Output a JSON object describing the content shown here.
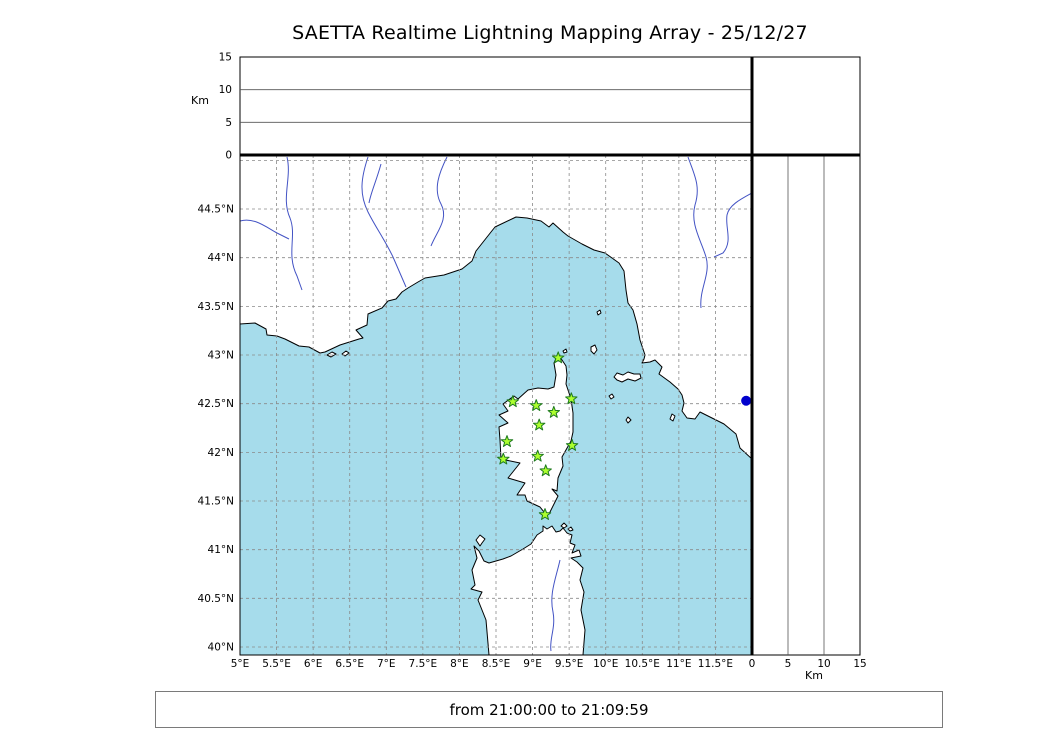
{
  "title": "SAETTA Realtime Lightning Mapping Array - 25/12/27",
  "status_bar": {
    "text": "from 21:00:00 to 21:09:59"
  },
  "colors": {
    "sea": "#a6dceb",
    "land": "#ffffff",
    "coastline": "#000000",
    "river": "#4353c4",
    "grid": "#8a8a8a",
    "panel_grid": "#555555",
    "axis": "#000000",
    "station_fill": "#adff2f",
    "station_edge": "#1e7a1e",
    "event_dot": "#0000cd"
  },
  "map": {
    "lon_range": [
      5.0,
      12.0
    ],
    "lat_range": [
      39.92,
      45.06
    ],
    "grid_step_deg": 0.5,
    "lon_ticks": [
      {
        "value": 5,
        "label": "5°E"
      },
      {
        "value": 5.5,
        "label": "5.5°E"
      },
      {
        "value": 6,
        "label": "6°E"
      },
      {
        "value": 6.5,
        "label": "6.5°E"
      },
      {
        "value": 7,
        "label": "7°E"
      },
      {
        "value": 7.5,
        "label": "7.5°E"
      },
      {
        "value": 8,
        "label": "8°E"
      },
      {
        "value": 8.5,
        "label": "8.5°E"
      },
      {
        "value": 9,
        "label": "9°E"
      },
      {
        "value": 9.5,
        "label": "9.5°E"
      },
      {
        "value": 10,
        "label": "10°E"
      },
      {
        "value": 10.5,
        "label": "10.5°E"
      },
      {
        "value": 11,
        "label": "11°E"
      },
      {
        "value": 11.5,
        "label": "11.5°E"
      }
    ],
    "lat_ticks": [
      {
        "value": 40,
        "label": "40°N"
      },
      {
        "value": 40.5,
        "label": "40.5°N"
      },
      {
        "value": 41,
        "label": "41°N"
      },
      {
        "value": 41.5,
        "label": "41.5°N"
      },
      {
        "value": 42,
        "label": "42°N"
      },
      {
        "value": 42.5,
        "label": "42.5°N"
      },
      {
        "value": 43,
        "label": "43°N"
      },
      {
        "value": 43.5,
        "label": "43.5°N"
      },
      {
        "value": 44,
        "label": "44°N"
      },
      {
        "value": 44.5,
        "label": "44.5°N"
      }
    ]
  },
  "altitude_axes": {
    "unit_label": "Km",
    "range_km": [
      0,
      15
    ],
    "ticks": [
      {
        "value": 0,
        "label": "0"
      },
      {
        "value": 5,
        "label": "5"
      },
      {
        "value": 10,
        "label": "10"
      },
      {
        "value": 15,
        "label": "15"
      }
    ]
  },
  "stations": [
    {
      "lon": 9.35,
      "lat": 42.97
    },
    {
      "lon": 8.73,
      "lat": 42.52
    },
    {
      "lon": 9.05,
      "lat": 42.48
    },
    {
      "lon": 9.53,
      "lat": 42.55
    },
    {
      "lon": 9.29,
      "lat": 42.41
    },
    {
      "lon": 9.09,
      "lat": 42.28
    },
    {
      "lon": 8.65,
      "lat": 42.11
    },
    {
      "lon": 9.54,
      "lat": 42.07
    },
    {
      "lon": 8.6,
      "lat": 41.93
    },
    {
      "lon": 9.07,
      "lat": 41.96
    },
    {
      "lon": 9.18,
      "lat": 41.81
    },
    {
      "lon": 9.17,
      "lat": 41.36
    }
  ],
  "events": [
    {
      "lon": 11.92,
      "lat": 42.53
    }
  ],
  "map_shapes": {
    "land_paths": [
      "M240,324 L255,323 L266,329 L267,335 L277,336 L285,339 L299,346 L309,347 L320,353 L325,352 L340,345 L359,339 L363,338 L356,330 L367,325 L368,314 L382,308 L388,301 L396,299 L402,292 L408,288 L418,282 L425,278 L444,275 L462,269 L472,261 L476,251 L491,232 L495,227 L516,217 L527,218 L541,221 L549,227 L553,223 L563,232 L568,236 L582,244 L594,250 L605,253 L619,263 L624,271 L626,290 L628,303 L633,310 L637,324 L640,340 L645,355 L644,359 L642,363 L650,362 L655,360 L662,367 L659,374 L670,382 L678,389 L682,395 L684,403 L682,411 L687,418 L695,419 L700,412 L708,416 L724,424 L736,434 L740,448 L752,459 L752,155 L240,155 Z",
      "M558,354 L566,366 L567,375 L566,384 L571,399 L573,413 L573,432 L571,441 L562,457 L563,466 L558,478 L557,491 L552,489 L558,496 L549,514 L544,512 L540,507 L527,501 L525,495 L517,495 L525,483 L508,478 L520,463 L501,459 L500,440 L499,427 L508,423 L499,415 L508,411 L503,404 L514,396 L518,399 L528,390 L538,388 L548,389 L554,387 L556,375 L554,363 Z",
      "M489,655 L486,620 L478,600 L482,592 L471,589 L475,585 L472,570 L477,558 L474,546 L479,551 L484,561 L489,563 L503,559 L511,556 L523,549 L531,544 L537,535 L543,531 L543,526 L547,529 L552,526 L556,532 L560,531 L563,528 L567,533 L572,535 L570,543 L575,545 L572,553 L579,550 L581,556 L571,558 L577,562 L583,568 L580,580 L584,592 L581,610 L585,630 L583,655 Z",
      "M480,546 L476,540 L480,535 L485,539 L482,543 Z",
      "M561,526 L564,523 L567,526 L564,528 Z",
      "M568,529 L571,527 L573,530 L570,531 Z",
      "M614,377 L617,373 L623,375 L628,372 L634,374 L640,374 L641,378 L635,381 L628,379 L622,382 L617,380 Z",
      "M591,347 L595,345 L597,350 L594,354 L591,351 Z",
      "M563,351 L566,349 L567,352 L564,353 Z",
      "M597,312 L600,310 L601,313 L598,315 Z",
      "M609,396 L612,394 L614,397 L611,399 Z",
      "M626,420 L628,417 L631,420 L628,423 Z",
      "M670,419 L672,414 L675,416 L673,421 Z",
      "M327,355 L332,352 L336,354 L331,357 Z",
      "M342,354 L346,351 L349,353 L345,356 Z"
    ],
    "river_paths": [
      "M287,157 C292,178 281,198 290,218 C297,236 286,254 297,276 L302,290",
      "M240,221 C254,217 266,227 277,233 L289,239",
      "M368,157 C361,178 359,194 368,212 C376,228 385,240 393,257 C399,271 403,280 406,287",
      "M381,164 C376,182 371,192 369,203",
      "M447,157 C439,173 433,189 441,204 C449,219 437,231 431,246",
      "M688,157 C694,174 701,186 695,205 C690,224 701,240 706,257 C711,274 699,289 701,308",
      "M752,193 C741,199 729,205 727,215 C725,228 733,241 723,253 L714,257",
      "M560,560 C556,578 549,594 553,612 C556,628 549,639 551,651"
    ]
  }
}
